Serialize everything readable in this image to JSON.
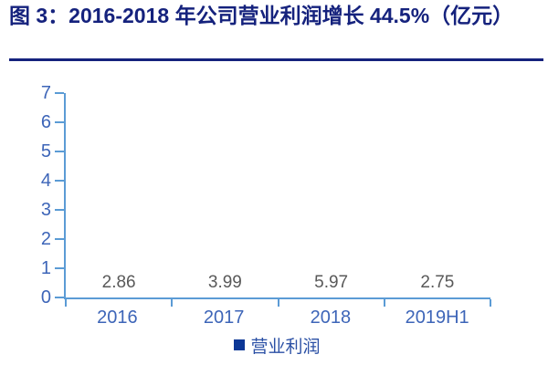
{
  "figure": {
    "title": "图 3：2016-2018 年公司营业利润增长 44.5%（亿元）"
  },
  "chart_data": {
    "type": "bar",
    "title": "图 3：2016-2018 年公司营业利润增长 44.5%（亿元）",
    "categories": [
      "2016",
      "2017",
      "2018",
      "2019H1"
    ],
    "series": [
      {
        "name": "营业利润",
        "values": [
          2.86,
          3.99,
          5.97,
          2.75
        ]
      }
    ],
    "value_labels": [
      "2.86",
      "3.99",
      "5.97",
      "2.75"
    ],
    "xlabel": "",
    "ylabel": "",
    "ylim": [
      0,
      7
    ],
    "y_ticks": [
      "0",
      "1",
      "2",
      "3",
      "4",
      "5",
      "6",
      "7"
    ],
    "grid": false,
    "legend_position": "bottom",
    "colors": {
      "bar": "#0C3796",
      "axis": "#5B9BD5",
      "tick_label": "#3D65B8",
      "data_label": "#595959",
      "title": "#15227D",
      "legend_text": "#2B50A5"
    }
  }
}
